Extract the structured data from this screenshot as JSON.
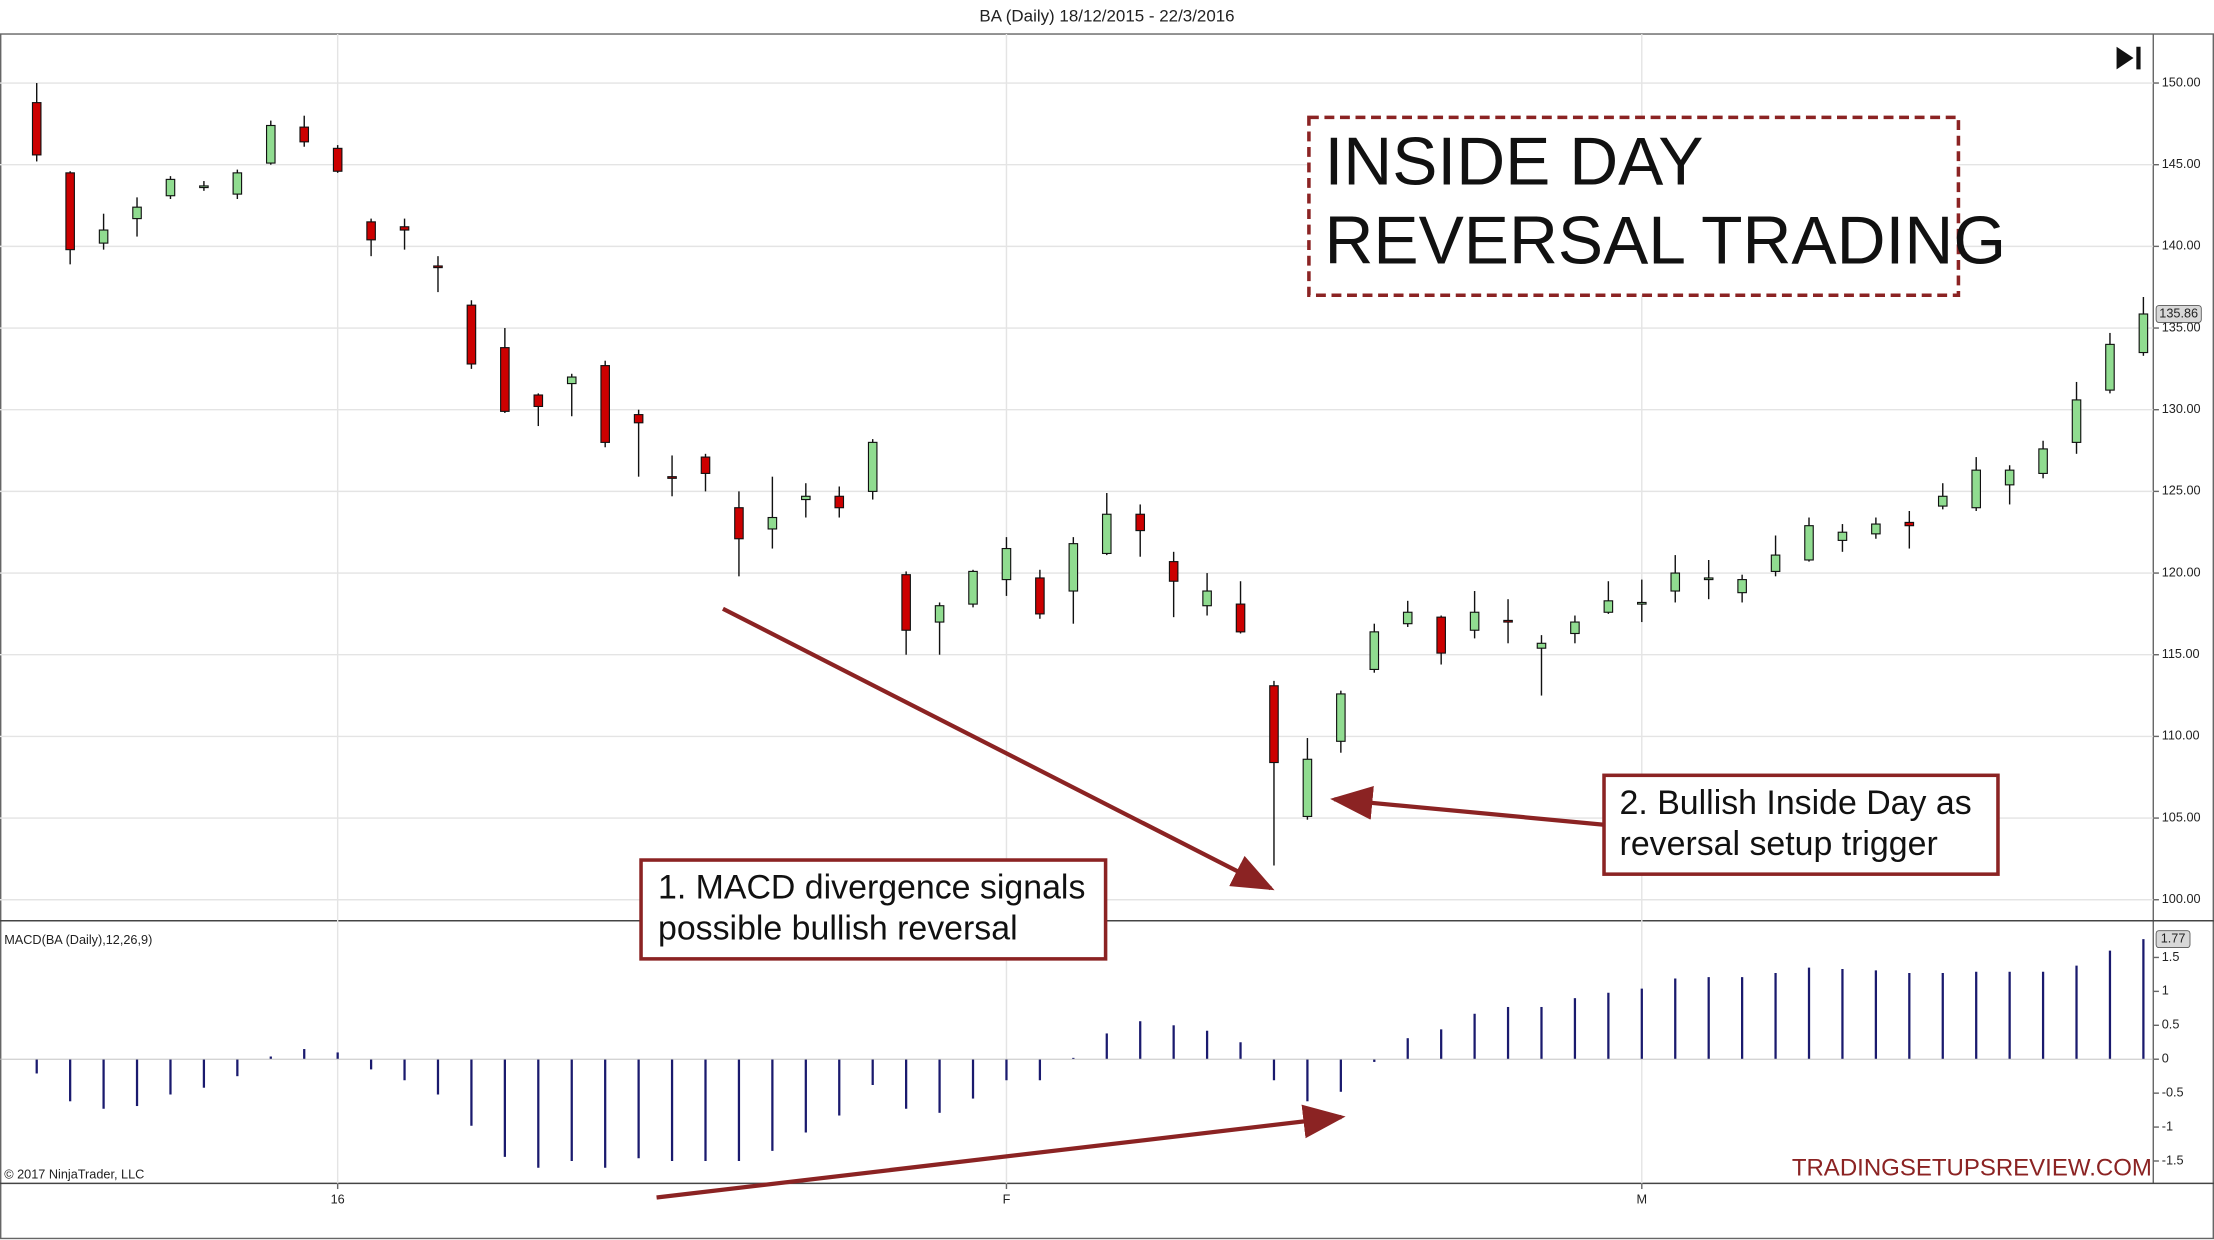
{
  "title": "BA (Daily)  18/12/2015 - 22/3/2016",
  "headline": [
    "INSIDE DAY",
    "REVERSAL TRADING"
  ],
  "notes": [
    [
      "1. MACD divergence signals",
      "possible bullish reversal"
    ],
    [
      "2. Bullish Inside Day as",
      "reversal setup trigger"
    ]
  ],
  "watermark": "TRADINGSETUPSREVIEW.COM",
  "copyright": "© 2017 NinjaTrader, LLC",
  "chart_data": [
    {
      "type": "candlestick",
      "categories": [
        null,
        null,
        null,
        null,
        null,
        null,
        null,
        null,
        null,
        "16",
        null,
        null,
        null,
        null,
        null,
        null,
        null,
        null,
        null,
        null,
        null,
        null,
        null,
        null,
        null,
        null,
        null,
        null,
        null,
        "F",
        null,
        null,
        null,
        null,
        null,
        null,
        null,
        null,
        null,
        null,
        null,
        null,
        null,
        null,
        null,
        null,
        null,
        null,
        "M",
        null,
        null,
        null,
        null,
        null,
        null,
        null,
        null,
        null,
        null,
        null,
        null,
        null,
        null,
        null
      ],
      "open": [
        148.8,
        144.5,
        140.2,
        141.7,
        143.1,
        143.6,
        143.2,
        145.1,
        147.3,
        146,
        141.5,
        141.2,
        138.8,
        136.4,
        133.8,
        130.9,
        131.6,
        132.7,
        129.7,
        125.9,
        127.1,
        124,
        122.7,
        124.5,
        124.7,
        125,
        119.9,
        117,
        118.1,
        119.6,
        119.7,
        118.9,
        121.2,
        123.6,
        120.7,
        118,
        118.1,
        113.1,
        105.1,
        109.7,
        114.1,
        116.9,
        117.3,
        116.5,
        117.1,
        115.4,
        116.3,
        117.6,
        118.1,
        118.9,
        119.6,
        118.8,
        120.1,
        120.8,
        122,
        122.4,
        123.1,
        124.1,
        124,
        125.4,
        126.1,
        128,
        131.2,
        133.5
      ],
      "high": [
        150,
        144.6,
        142,
        143,
        144.3,
        144,
        144.7,
        147.7,
        148,
        146.2,
        141.7,
        141.7,
        139.4,
        136.7,
        135,
        131,
        132.2,
        133,
        130,
        127.2,
        127.3,
        125,
        125.9,
        125.5,
        125.3,
        128.2,
        120.1,
        118.2,
        120.2,
        122.2,
        120.2,
        122.2,
        124.9,
        124.2,
        121.3,
        120,
        119.5,
        113.4,
        109.9,
        112.8,
        116.9,
        118.3,
        117.4,
        118.9,
        118.4,
        116.2,
        117.4,
        119.5,
        119.6,
        121.1,
        120.8,
        119.9,
        122.3,
        123.4,
        123,
        123.4,
        123.8,
        125.5,
        127.1,
        126.6,
        128.1,
        131.7,
        134.7,
        136.9
      ],
      "low": [
        145.2,
        138.9,
        139.8,
        140.6,
        142.9,
        143.4,
        142.9,
        145,
        146.1,
        144.5,
        139.4,
        139.8,
        137.2,
        132.5,
        129.8,
        129,
        129.6,
        127.7,
        125.9,
        124.7,
        125,
        119.8,
        121.5,
        123.4,
        123.4,
        124.5,
        115,
        115,
        117.9,
        118.6,
        117.2,
        116.9,
        121.1,
        121,
        117.3,
        117.4,
        116.3,
        102.1,
        104.9,
        109,
        113.9,
        116.7,
        114.4,
        116,
        115.7,
        112.5,
        115.7,
        117.5,
        117,
        118.2,
        118.4,
        118.2,
        119.8,
        120.7,
        121.3,
        122.1,
        121.5,
        123.9,
        123.8,
        124.2,
        125.8,
        127.3,
        131,
        133.3
      ],
      "close": [
        145.6,
        139.8,
        141,
        142.4,
        144.1,
        143.7,
        144.5,
        147.4,
        146.4,
        144.6,
        140.4,
        141,
        138.7,
        132.8,
        129.9,
        130.2,
        132,
        128,
        129.2,
        125.8,
        126.1,
        122.1,
        123.4,
        124.7,
        124,
        128,
        116.5,
        118,
        120.1,
        121.5,
        117.5,
        121.8,
        123.6,
        122.6,
        119.5,
        118.9,
        116.4,
        108.4,
        108.6,
        112.6,
        116.4,
        117.6,
        115.1,
        117.6,
        117,
        115.7,
        117,
        118.3,
        118.2,
        120,
        119.7,
        119.6,
        121.1,
        122.9,
        122.5,
        123,
        122.9,
        124.7,
        126.3,
        126.3,
        127.6,
        130.6,
        134,
        135.86
      ],
      "up_color": "#90dc90",
      "down_color": "#cc0000",
      "last_price": 135.86,
      "ylim": [
        98.8,
        153
      ],
      "yticks": [
        {
          "value": 100,
          "label": "100.00"
        },
        {
          "value": 105,
          "label": "105.00"
        },
        {
          "value": 110,
          "label": "110.00"
        },
        {
          "value": 115,
          "label": "115.00"
        },
        {
          "value": 120,
          "label": "120.00"
        },
        {
          "value": 125,
          "label": "125.00"
        },
        {
          "value": 130,
          "label": "130.00"
        },
        {
          "value": 135,
          "label": "135.00"
        },
        {
          "value": 140,
          "label": "140.00"
        },
        {
          "value": 145,
          "label": "145.00"
        },
        {
          "value": 150,
          "label": "150.00"
        }
      ],
      "grid": true
    },
    {
      "type": "bar",
      "title": "MACD(BA (Daily),12,26,9)",
      "values": [
        -0.21,
        -0.62,
        -0.73,
        -0.69,
        -0.52,
        -0.42,
        -0.25,
        0.04,
        0.15,
        0.1,
        -0.15,
        -0.31,
        -0.52,
        -0.98,
        -1.44,
        -1.6,
        -1.5,
        -1.6,
        -1.46,
        -1.5,
        -1.5,
        -1.5,
        -1.35,
        -1.08,
        -0.83,
        -0.38,
        -0.73,
        -0.79,
        -0.58,
        -0.31,
        -0.31,
        0.02,
        0.38,
        0.56,
        0.5,
        0.42,
        0.25,
        -0.31,
        -0.62,
        -0.48,
        -0.04,
        0.31,
        0.44,
        0.67,
        0.77,
        0.77,
        0.9,
        0.98,
        1.04,
        1.19,
        1.21,
        1.21,
        1.27,
        1.35,
        1.33,
        1.31,
        1.27,
        1.27,
        1.29,
        1.29,
        1.29,
        1.38,
        1.6,
        1.77
      ],
      "color": "#1a1a6e",
      "last_value": 1.77,
      "ylim": [
        -1.83,
        2.02
      ],
      "yticks": [
        -1.5,
        -1,
        -0.5,
        0,
        0.5,
        1,
        1.5
      ]
    }
  ]
}
